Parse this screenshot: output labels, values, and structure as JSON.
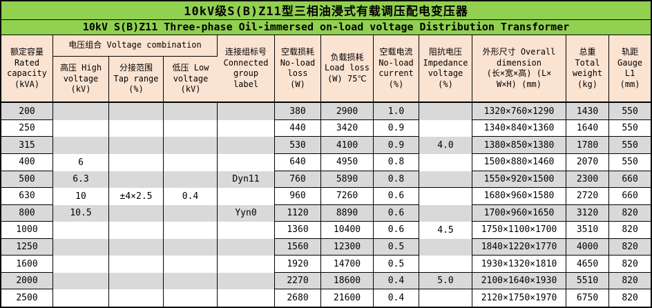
{
  "title": {
    "zh": "10kV级S(B)Z11型三相油浸式有载调压配电变压器",
    "en": "10kV S(B)Z11 Three-phase Oil-immersed on-load voltage Distribution Transformer"
  },
  "colors": {
    "title_bg": "#92D050",
    "header_bg": "#FBE3D2",
    "stripe_bg": "#D9D9D9",
    "border": "#000000"
  },
  "header": {
    "capacity": "额定容量\nRated\ncapacity\n(kVA)",
    "voltage_combination": "电压组合 Voltage combination",
    "high_voltage": "高压 High\nvoltage\n(kV)",
    "tap_range": "分接范围\nTap range\n(%)",
    "low_voltage": "低压 Low\nvoltage\n(kV)",
    "connected_group": "连接组标号\nConnected\ngroup\nlabel",
    "no_load_loss": "空载损耗\nNo-load\nloss\n(W)",
    "load_loss": "负载损耗\nLoad loss\n(W) 75℃",
    "no_load_current": "空载电流\nNo-load\ncurrent\n(%)",
    "impedance": "阻抗电压\nImpedance\nvoltage\n(%)",
    "dimension": "外形尺寸 Overall\ndimension\n(长×宽×高) (L×\nW×H) (mm)",
    "total_weight": "总重\nTotal\nweight\n(kg)",
    "gauge": "轨距\nGauge\nL1\n(mm)"
  },
  "rows": [
    {
      "capacity": "200",
      "high_voltage": "",
      "tap_range": "",
      "low_voltage": "",
      "connected_group": "",
      "no_load_loss": "380",
      "load_loss": "2900",
      "no_load_current": "1.0",
      "impedance": "",
      "dimension": "1320×760×1290",
      "total_weight": "1430",
      "gauge": "550"
    },
    {
      "capacity": "250",
      "high_voltage": "",
      "tap_range": "",
      "low_voltage": "",
      "connected_group": "",
      "no_load_loss": "440",
      "load_loss": "3420",
      "no_load_current": "0.9",
      "impedance": "",
      "dimension": "1340×840×1360",
      "total_weight": "1640",
      "gauge": "550"
    },
    {
      "capacity": "315",
      "high_voltage": "",
      "tap_range": "",
      "low_voltage": "",
      "connected_group": "",
      "no_load_loss": "530",
      "load_loss": "4100",
      "no_load_current": "0.9",
      "impedance": "4.0",
      "dimension": "1380×850×1380",
      "total_weight": "1780",
      "gauge": "550"
    },
    {
      "capacity": "400",
      "high_voltage": "6",
      "tap_range": "",
      "low_voltage": "",
      "connected_group": "",
      "no_load_loss": "640",
      "load_loss": "4950",
      "no_load_current": "0.8",
      "impedance": "",
      "dimension": "1500×880×1460",
      "total_weight": "2070",
      "gauge": "550"
    },
    {
      "capacity": "500",
      "high_voltage": "6.3",
      "tap_range": "",
      "low_voltage": "",
      "connected_group": "Dyn11",
      "no_load_loss": "760",
      "load_loss": "5890",
      "no_load_current": "0.8",
      "impedance": "",
      "dimension": "1550×920×1500",
      "total_weight": "2300",
      "gauge": "660"
    },
    {
      "capacity": "630",
      "high_voltage": "10",
      "tap_range": "±4×2.5",
      "low_voltage": "0.4",
      "connected_group": "",
      "no_load_loss": "960",
      "load_loss": "7260",
      "no_load_current": "0.6",
      "impedance": "",
      "dimension": "1680×960×1580",
      "total_weight": "2720",
      "gauge": "660"
    },
    {
      "capacity": "800",
      "high_voltage": "10.5",
      "tap_range": "",
      "low_voltage": "",
      "connected_group": "Yyn0",
      "no_load_loss": "1120",
      "load_loss": "8890",
      "no_load_current": "0.6",
      "impedance": "",
      "dimension": "1700×960×1650",
      "total_weight": "3120",
      "gauge": "820"
    },
    {
      "capacity": "1000",
      "high_voltage": "",
      "tap_range": "",
      "low_voltage": "",
      "connected_group": "",
      "no_load_loss": "1360",
      "load_loss": "10400",
      "no_load_current": "0.6",
      "impedance": "4.5",
      "dimension": "1750×1100×1700",
      "total_weight": "3510",
      "gauge": "820"
    },
    {
      "capacity": "1250",
      "high_voltage": "",
      "tap_range": "",
      "low_voltage": "",
      "connected_group": "",
      "no_load_loss": "1560",
      "load_loss": "12300",
      "no_load_current": "0.5",
      "impedance": "",
      "dimension": "1840×1220×1770",
      "total_weight": "4000",
      "gauge": "820"
    },
    {
      "capacity": "1600",
      "high_voltage": "",
      "tap_range": "",
      "low_voltage": "",
      "connected_group": "",
      "no_load_loss": "1920",
      "load_loss": "14700",
      "no_load_current": "0.5",
      "impedance": "",
      "dimension": "1930×1320×1810",
      "total_weight": "4650",
      "gauge": "820"
    },
    {
      "capacity": "2000",
      "high_voltage": "",
      "tap_range": "",
      "low_voltage": "",
      "connected_group": "",
      "no_load_loss": "2270",
      "load_loss": "18600",
      "no_load_current": "0.4",
      "impedance": "5.0",
      "dimension": "2100×1640×1930",
      "total_weight": "5510",
      "gauge": "820"
    },
    {
      "capacity": "2500",
      "high_voltage": "",
      "tap_range": "",
      "low_voltage": "",
      "connected_group": "",
      "no_load_loss": "2680",
      "load_loss": "21600",
      "no_load_current": "0.4",
      "impedance": "",
      "dimension": "2120×1750×1970",
      "total_weight": "6750",
      "gauge": "820"
    }
  ]
}
